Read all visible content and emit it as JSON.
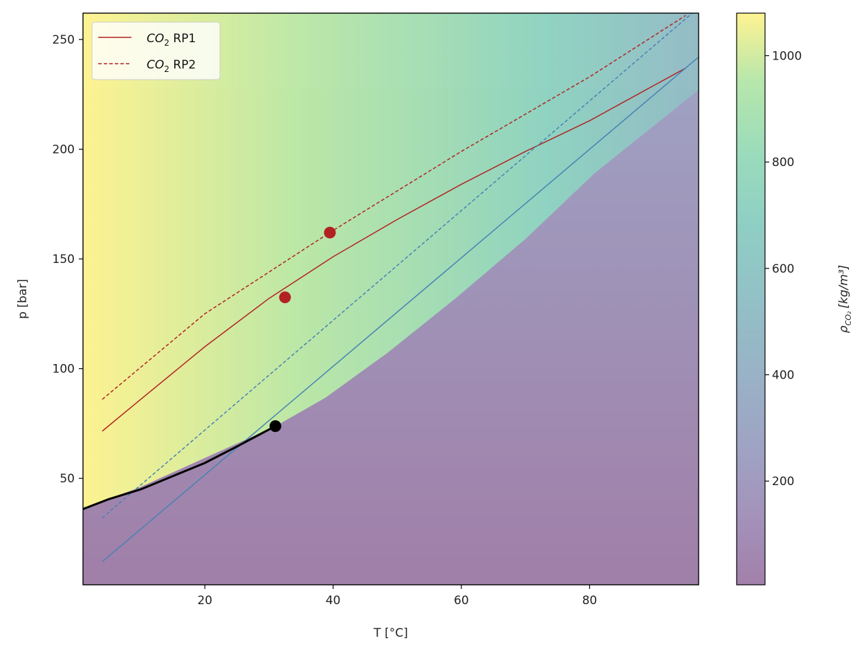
{
  "chart_data": {
    "type": "line",
    "xlabel": "T [°C]",
    "ylabel": "p [bar]",
    "xlim": [
      1,
      97
    ],
    "ylim": [
      1.5,
      262
    ],
    "xticks": [
      20,
      40,
      60,
      80
    ],
    "yticks": [
      50,
      100,
      150,
      200,
      250
    ],
    "grid": false,
    "legend": {
      "placement": "top-left",
      "entries": [
        {
          "base": "CO",
          "sub": "2",
          "suffix": " RP1",
          "style": "solid",
          "color": "#b22222"
        },
        {
          "base": "CO",
          "sub": "2",
          "suffix": " RP2",
          "style": "dashed",
          "color": "#b22222"
        }
      ]
    },
    "colorbar": {
      "label_main": "ρ",
      "label_sub": "CO₂",
      "label_units": "[kg/m³]",
      "range": [
        5,
        1080
      ],
      "ticks": [
        200,
        400,
        600,
        800,
        1000
      ],
      "colormap": "viridis",
      "alpha": 0.5
    },
    "series": [
      {
        "name": "CO₂ RP1",
        "style": "solid",
        "color": "#b22222",
        "x": [
          4,
          10,
          20,
          30,
          40,
          50,
          60,
          70,
          80,
          90,
          95
        ],
        "y": [
          71.5,
          86,
          110,
          132,
          151,
          168,
          184,
          199,
          213,
          229,
          237
        ]
      },
      {
        "name": "CO₂ RP2",
        "style": "dashed",
        "color": "#b22222",
        "x": [
          4,
          20,
          40,
          60,
          80,
          95
        ],
        "y": [
          86,
          125,
          163,
          199,
          233,
          261
        ]
      },
      {
        "style": "solid",
        "color": "#4682b4",
        "x": [
          4,
          97
        ],
        "y": [
          12,
          242
        ]
      },
      {
        "style": "dashed",
        "color": "#4682b4",
        "x": [
          4,
          96
        ],
        "y": [
          32,
          262
        ]
      },
      {
        "style": "solid-thick",
        "color": "#000000",
        "x": [
          1,
          5,
          10,
          15,
          20,
          25,
          31
        ],
        "y": [
          36,
          40.5,
          45,
          51,
          57,
          64.5,
          73.8
        ]
      }
    ],
    "points": [
      {
        "x": 39.5,
        "y": 162,
        "color": "#b22222"
      },
      {
        "x": 32.5,
        "y": 132.5,
        "color": "#b22222"
      },
      {
        "x": 31,
        "y": 73.8,
        "color": "#000000"
      }
    ]
  }
}
